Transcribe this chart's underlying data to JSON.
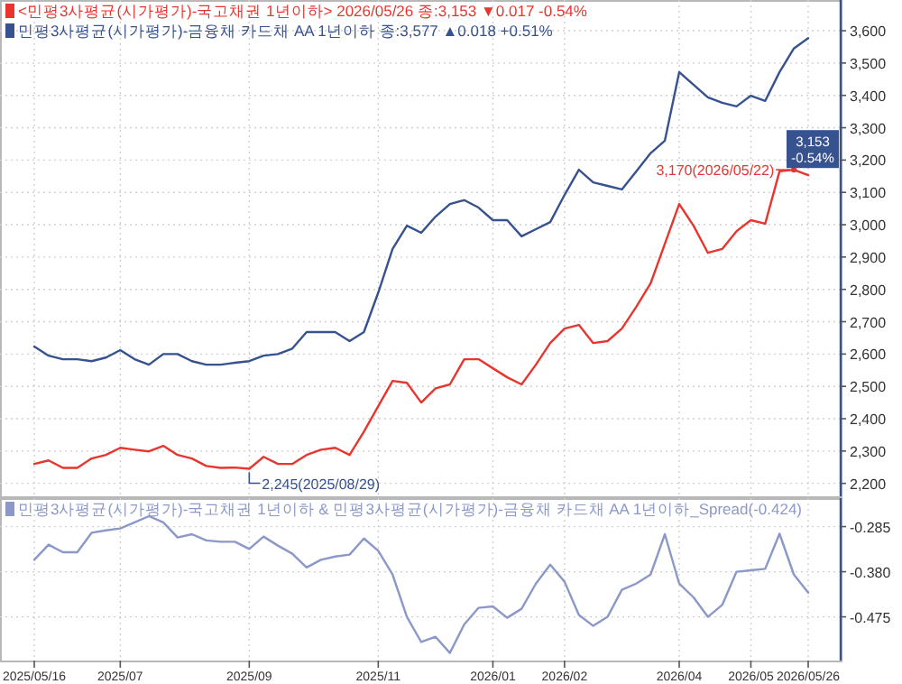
{
  "chart_data": [
    {
      "type": "line",
      "categories": [
        "2025/05/16",
        null,
        null,
        null,
        null,
        null,
        "2025/07",
        null,
        null,
        null,
        null,
        null,
        null,
        null,
        null,
        "2025/09",
        null,
        null,
        null,
        null,
        null,
        null,
        null,
        null,
        "2025/11",
        null,
        null,
        null,
        null,
        null,
        null,
        null,
        "2026/01",
        null,
        null,
        null,
        null,
        "2026/02",
        null,
        null,
        null,
        null,
        null,
        null,
        null,
        "2026/04",
        null,
        null,
        null,
        null,
        "2026/05",
        null,
        null,
        null,
        "2026/05/26"
      ],
      "series": [
        {
          "name": "<민평3사평균(시가평가)-국고채권 1년이하>",
          "color": "#e8352e",
          "values": [
            2260,
            2271,
            2248,
            2248,
            2277,
            2288,
            2310,
            2304,
            2299,
            2316,
            2288,
            2277,
            2254,
            2248,
            2249,
            2245,
            2282,
            2260,
            2260,
            2288,
            2304,
            2310,
            2288,
            2360,
            2439,
            2517,
            2511,
            2450,
            2494,
            2506,
            2584,
            2584,
            2556,
            2528,
            2506,
            2567,
            2634,
            2679,
            2690,
            2634,
            2640,
            2679,
            2746,
            2818,
            2941,
            3064,
            2997,
            2913,
            2925,
            2980,
            3014,
            3003,
            3165,
            3170,
            3153
          ]
        },
        {
          "name": "민평3사평균(시가평가)-금융채 카드채 AA 1년이하",
          "color": "#36528f",
          "values": [
            2623,
            2595,
            2584,
            2584,
            2578,
            2589,
            2612,
            2584,
            2567,
            2600,
            2600,
            2578,
            2567,
            2567,
            2573,
            2578,
            2595,
            2600,
            2617,
            2668,
            2668,
            2668,
            2640,
            2668,
            2790,
            2925,
            2997,
            2975,
            3025,
            3064,
            3076,
            3053,
            3014,
            3014,
            2964,
            2986,
            3008,
            3092,
            3170,
            3131,
            3120,
            3109,
            3165,
            3221,
            3260,
            3472,
            3433,
            3394,
            3377,
            3366,
            3399,
            3383,
            3472,
            3545,
            3577
          ]
        }
      ],
      "ylim": [
        2160,
        3695
      ],
      "yticks": [
        {
          "value": 2200,
          "label": "2,200"
        },
        {
          "value": 2300,
          "label": "2,300"
        },
        {
          "value": 2400,
          "label": "2,400"
        },
        {
          "value": 2500,
          "label": "2,500"
        },
        {
          "value": 2600,
          "label": "2,600"
        },
        {
          "value": 2700,
          "label": "2,700"
        },
        {
          "value": 2800,
          "label": "2,800"
        },
        {
          "value": 2900,
          "label": "2,900"
        },
        {
          "value": 3000,
          "label": "3,000"
        },
        {
          "value": 3100,
          "label": "3,100"
        },
        {
          "value": 3200,
          "label": "3,200"
        },
        {
          "value": 3300,
          "label": "3,300"
        },
        {
          "value": 3400,
          "label": "3,400"
        },
        {
          "value": 3500,
          "label": "3,500"
        },
        {
          "value": 3600,
          "label": "3,600"
        }
      ],
      "annotations": [
        "2026/05/26 종:3,153 ▼0.017 -0.54%",
        "종:3,577 ▲0.018 +0.51%",
        "3,170(2026/05/22)",
        "2,245(2025/08/29)",
        {
          "text": "3,153 -0.54%",
          "y": 3153
        }
      ],
      "grid": true,
      "tick_labels": "y"
    },
    {
      "type": "line",
      "categories": [
        "2025/05/16",
        null,
        null,
        null,
        null,
        null,
        "2025/07",
        null,
        null,
        null,
        null,
        null,
        null,
        null,
        null,
        "2025/09",
        null,
        null,
        null,
        null,
        null,
        null,
        null,
        null,
        "2025/11",
        null,
        null,
        null,
        null,
        null,
        null,
        null,
        "2026/01",
        null,
        null,
        null,
        null,
        "2026/02",
        null,
        null,
        null,
        null,
        null,
        null,
        null,
        "2026/04",
        null,
        null,
        null,
        null,
        "2026/05",
        null,
        null,
        null,
        "2026/05/26"
      ],
      "series": [
        {
          "name": "민평3사평균(시가평가)-국고채권 1년이하 & 민평3사평균(시가평가)-금융채 카드채 AA 1년이하_Spread(-0.424)",
          "color": "#8b98c8",
          "values": [
            -0.355,
            -0.323,
            -0.339,
            -0.339,
            -0.298,
            -0.293,
            -0.289,
            -0.276,
            -0.263,
            -0.276,
            -0.308,
            -0.301,
            -0.314,
            -0.317,
            -0.317,
            -0.332,
            -0.306,
            -0.325,
            -0.342,
            -0.371,
            -0.355,
            -0.348,
            -0.344,
            -0.31,
            -0.336,
            -0.386,
            -0.475,
            -0.528,
            -0.517,
            -0.551,
            -0.491,
            -0.456,
            -0.453,
            -0.477,
            -0.458,
            -0.405,
            -0.365,
            -0.401,
            -0.471,
            -0.494,
            -0.475,
            -0.418,
            -0.405,
            -0.386,
            -0.301,
            -0.405,
            -0.434,
            -0.475,
            -0.45,
            -0.38,
            -0.377,
            -0.374,
            -0.3,
            -0.386,
            -0.424
          ]
        }
      ],
      "ylim": [
        -0.567,
        -0.225
      ],
      "yticks": [
        {
          "value": -0.285,
          "label": "-0.285"
        },
        {
          "value": -0.38,
          "label": "-0.380"
        },
        {
          "value": -0.475,
          "label": "-0.475"
        }
      ],
      "grid": true
    }
  ]
}
